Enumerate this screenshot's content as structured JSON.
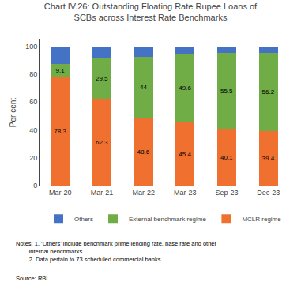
{
  "chart_data": {
    "type": "bar",
    "stacked": true,
    "title": "Chart IV.26: Outstanding Floating Rate Rupee Loans of\nSCBs across Interest Rate Benchmarks",
    "categories": [
      "Mar-20",
      "Mar-21",
      "Mar-22",
      "Mar-23",
      "Sep-23",
      "Dec-23"
    ],
    "series": [
      {
        "name": "MCLR regime",
        "color": "#f07030",
        "values": [
          78.3,
          62.3,
          48.6,
          45.4,
          40.1,
          39.4
        ],
        "data_labels": true
      },
      {
        "name": "External benchmark regime",
        "color": "#70ad47",
        "values": [
          9.1,
          29.5,
          44.0,
          49.6,
          55.5,
          56.2
        ],
        "data_labels": true
      },
      {
        "name": "Others",
        "color": "#4472c4",
        "values": [
          12.6,
          8.2,
          7.4,
          5.0,
          4.4,
          4.4
        ],
        "data_labels": false
      }
    ],
    "ylabel": "Per cent",
    "ylim": [
      0,
      105
    ],
    "yticks": [
      0,
      20,
      40,
      60,
      80,
      100
    ],
    "grid": false,
    "legend": "bottom",
    "annotations": [
      "Notes: 1. ‘Others’ include benchmark prime lending rate, base rate and other\n        internal benchmarks.\n        2. Data pertain to 73 scheduled commercial banks.",
      "Source: RBI."
    ]
  }
}
